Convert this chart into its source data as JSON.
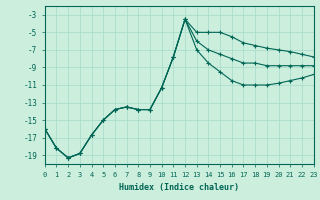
{
  "xlabel": "Humidex (Indice chaleur)",
  "bg_color": "#cceedd",
  "grid_color": "#aaddcc",
  "line_color": "#006655",
  "xlim": [
    0,
    23
  ],
  "ylim": [
    -20,
    -2
  ],
  "yticks": [
    -19,
    -17,
    -15,
    -13,
    -11,
    -9,
    -7,
    -5,
    -3
  ],
  "xticks": [
    0,
    1,
    2,
    3,
    4,
    5,
    6,
    7,
    8,
    9,
    10,
    11,
    12,
    13,
    14,
    15,
    16,
    17,
    18,
    19,
    20,
    21,
    22,
    23
  ],
  "lines": [
    {
      "x": [
        0,
        1,
        2,
        3,
        4,
        5,
        6,
        7,
        8,
        9,
        10,
        11,
        12,
        13,
        14,
        15,
        16,
        17,
        18,
        19,
        20,
        21,
        22,
        23
      ],
      "y": [
        -16.0,
        -18.2,
        -19.3,
        -18.8,
        -16.7,
        -15.0,
        -13.8,
        -13.5,
        -13.8,
        -13.8,
        -11.3,
        -7.8,
        -3.5,
        -5.0,
        -5.0,
        -5.0,
        -5.5,
        -6.2,
        -6.5,
        -6.8,
        -7.0,
        -7.2,
        -7.5,
        -7.8
      ],
      "marker": true
    },
    {
      "x": [
        0,
        1,
        2,
        3,
        4,
        5,
        6,
        7,
        8,
        9,
        10,
        11,
        12,
        13,
        14,
        15,
        16,
        17,
        18,
        19,
        20,
        21,
        22,
        23
      ],
      "y": [
        -16.0,
        -18.2,
        -19.3,
        -18.8,
        -16.7,
        -15.0,
        -13.8,
        -13.5,
        -13.8,
        -13.8,
        -11.3,
        -7.8,
        -3.5,
        -6.0,
        -7.0,
        -7.5,
        -8.0,
        -8.5,
        -8.5,
        -8.8,
        -8.8,
        -8.8,
        -8.8,
        -8.8
      ],
      "marker": true
    },
    {
      "x": [
        0,
        1,
        2,
        3,
        4,
        5,
        6,
        7,
        8,
        9,
        10,
        11,
        12,
        13,
        14,
        15,
        16,
        17,
        18,
        19,
        20,
        21,
        22,
        23
      ],
      "y": [
        -16.0,
        -18.2,
        -19.3,
        -18.8,
        -16.7,
        -15.0,
        -13.8,
        -13.5,
        -13.8,
        -13.8,
        -11.3,
        -7.8,
        -3.5,
        -7.0,
        -8.5,
        -9.5,
        -10.5,
        -11.0,
        -11.0,
        -11.0,
        -10.8,
        -10.5,
        -10.2,
        -9.8
      ],
      "marker": true
    }
  ]
}
